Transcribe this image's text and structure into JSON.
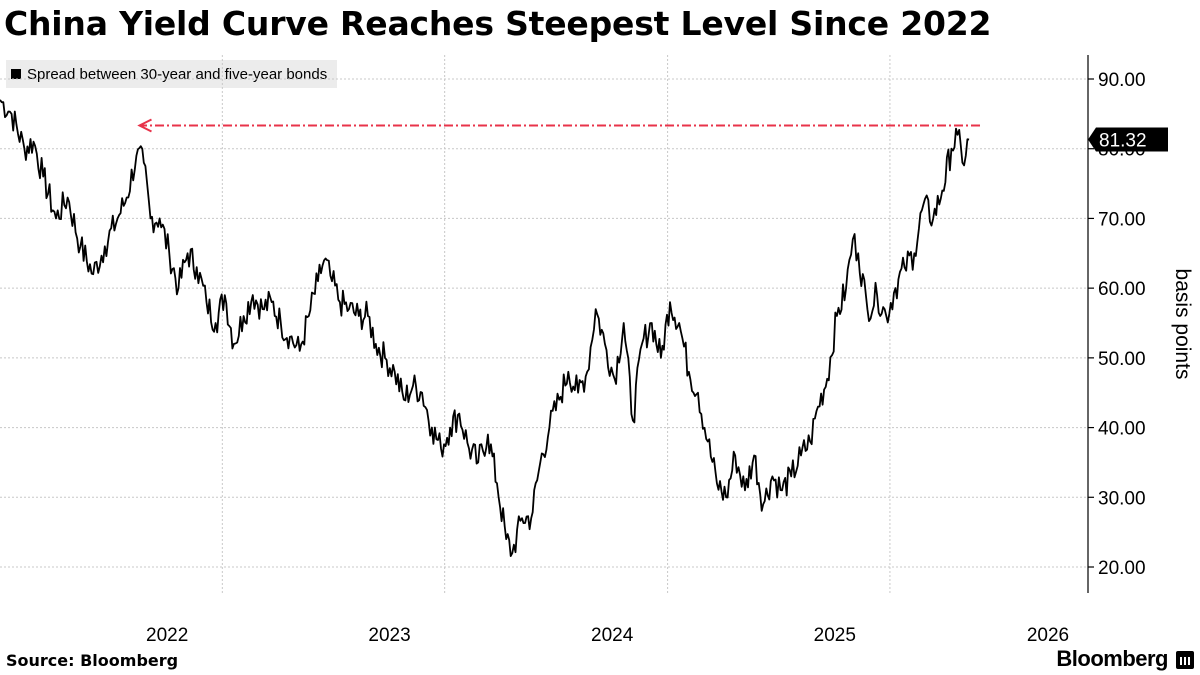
{
  "title": "China Yield Curve Reaches Steepest Level Since 2022",
  "legend_label": "Spread between 30-year and five-year bonds",
  "source": "Source: Bloomberg",
  "brand": "Bloomberg",
  "colors": {
    "line": "#000000",
    "arrow": "#e8334a",
    "grid": "#c8c8c8",
    "label_bg": "#000000"
  },
  "chart_data": {
    "type": "line",
    "title": "China Yield Curve Reaches Steepest Level Since 2022",
    "ylabel": "basis points",
    "ylim": [
      17,
      95
    ],
    "y_ticks": [
      "20.00",
      "30.00",
      "40.00",
      "50.00",
      "60.00",
      "70.00",
      "80.00",
      "90.00"
    ],
    "x_ticks": [
      "2022",
      "2023",
      "2024",
      "2025",
      "2026"
    ],
    "grid": true,
    "legend_position": "top-left",
    "last_value_label": "81.32",
    "series": [
      {
        "name": "Spread between 30-year and five-year bonds",
        "color": "#000000",
        "points": [
          [
            "2021-07-01",
            87
          ],
          [
            "2021-07-20",
            85
          ],
          [
            "2021-08-10",
            80
          ],
          [
            "2021-08-25",
            81
          ],
          [
            "2021-09-10",
            76
          ],
          [
            "2021-10-01",
            70
          ],
          [
            "2021-10-20",
            73
          ],
          [
            "2021-11-10",
            66
          ],
          [
            "2021-12-01",
            62
          ],
          [
            "2021-12-20",
            66
          ],
          [
            "2022-01-10",
            70
          ],
          [
            "2022-01-25",
            73
          ],
          [
            "2022-02-10",
            79
          ],
          [
            "2022-02-22",
            78
          ],
          [
            "2022-03-05",
            70
          ],
          [
            "2022-03-20",
            70
          ],
          [
            "2022-04-05",
            65
          ],
          [
            "2022-04-20",
            60
          ],
          [
            "2022-05-05",
            65
          ],
          [
            "2022-05-20",
            63
          ],
          [
            "2022-06-05",
            58
          ],
          [
            "2022-06-20",
            55
          ],
          [
            "2022-07-05",
            59
          ],
          [
            "2022-07-20",
            52
          ],
          [
            "2022-08-05",
            56
          ],
          [
            "2022-08-20",
            59
          ],
          [
            "2022-09-05",
            57
          ],
          [
            "2022-09-20",
            58
          ],
          [
            "2022-10-05",
            55
          ],
          [
            "2022-10-20",
            53
          ],
          [
            "2022-11-05",
            51
          ],
          [
            "2022-11-20",
            56
          ],
          [
            "2022-12-05",
            61
          ],
          [
            "2022-12-15",
            64
          ],
          [
            "2022-12-28",
            61
          ],
          [
            "2023-01-10",
            58
          ],
          [
            "2023-01-25",
            57
          ],
          [
            "2023-02-10",
            56
          ],
          [
            "2023-02-25",
            56
          ],
          [
            "2023-03-10",
            52
          ],
          [
            "2023-03-25",
            50
          ],
          [
            "2023-04-10",
            48
          ],
          [
            "2023-04-25",
            44
          ],
          [
            "2023-05-10",
            46
          ],
          [
            "2023-05-25",
            45
          ],
          [
            "2023-06-10",
            40
          ],
          [
            "2023-06-25",
            37
          ],
          [
            "2023-07-10",
            40
          ],
          [
            "2023-07-25",
            42
          ],
          [
            "2023-08-10",
            37
          ],
          [
            "2023-08-25",
            35
          ],
          [
            "2023-09-10",
            39
          ],
          [
            "2023-09-25",
            32
          ],
          [
            "2023-10-10",
            24
          ],
          [
            "2023-10-20",
            22
          ],
          [
            "2023-11-05",
            27
          ],
          [
            "2023-11-20",
            27
          ],
          [
            "2023-12-05",
            35
          ],
          [
            "2023-12-20",
            40
          ],
          [
            "2024-01-05",
            44
          ],
          [
            "2024-01-20",
            48
          ],
          [
            "2024-02-05",
            45
          ],
          [
            "2024-02-20",
            48
          ],
          [
            "2024-03-05",
            57
          ],
          [
            "2024-03-20",
            52
          ],
          [
            "2024-04-05",
            47
          ],
          [
            "2024-04-20",
            55
          ],
          [
            "2024-05-05",
            41
          ],
          [
            "2024-05-20",
            52
          ],
          [
            "2024-06-05",
            55
          ],
          [
            "2024-06-20",
            50
          ],
          [
            "2024-07-05",
            58
          ],
          [
            "2024-07-20",
            55
          ],
          [
            "2024-08-05",
            48
          ],
          [
            "2024-08-20",
            45
          ],
          [
            "2024-09-05",
            38
          ],
          [
            "2024-09-20",
            32
          ],
          [
            "2024-10-05",
            30
          ],
          [
            "2024-10-20",
            36
          ],
          [
            "2024-11-05",
            31
          ],
          [
            "2024-11-20",
            36
          ],
          [
            "2024-12-05",
            29
          ],
          [
            "2024-12-20",
            33
          ],
          [
            "2025-01-05",
            31
          ],
          [
            "2025-01-20",
            33
          ],
          [
            "2025-02-05",
            36
          ],
          [
            "2025-02-20",
            38
          ],
          [
            "2025-03-05",
            43
          ],
          [
            "2025-03-20",
            47
          ],
          [
            "2025-04-05",
            56
          ],
          [
            "2025-04-20",
            60
          ],
          [
            "2025-05-01",
            67
          ],
          [
            "2025-05-10",
            65
          ],
          [
            "2025-05-25",
            57
          ],
          [
            "2025-06-10",
            59
          ],
          [
            "2025-06-25",
            56
          ],
          [
            "2025-07-10",
            60
          ],
          [
            "2025-07-25",
            63
          ],
          [
            "2025-08-10",
            65
          ],
          [
            "2025-08-25",
            72
          ],
          [
            "2025-09-10",
            70
          ],
          [
            "2025-09-25",
            74
          ],
          [
            "2025-10-10",
            80
          ],
          [
            "2025-10-20",
            82
          ],
          [
            "2025-10-28",
            78
          ],
          [
            "2025-11-08",
            81.32
          ]
        ]
      }
    ],
    "annotations": [
      {
        "type": "arrow",
        "color": "#e8334a",
        "y": 81.32,
        "x_from": "2026-01-05",
        "x_to": "2022-02-15",
        "style": "dash-dot"
      }
    ]
  }
}
